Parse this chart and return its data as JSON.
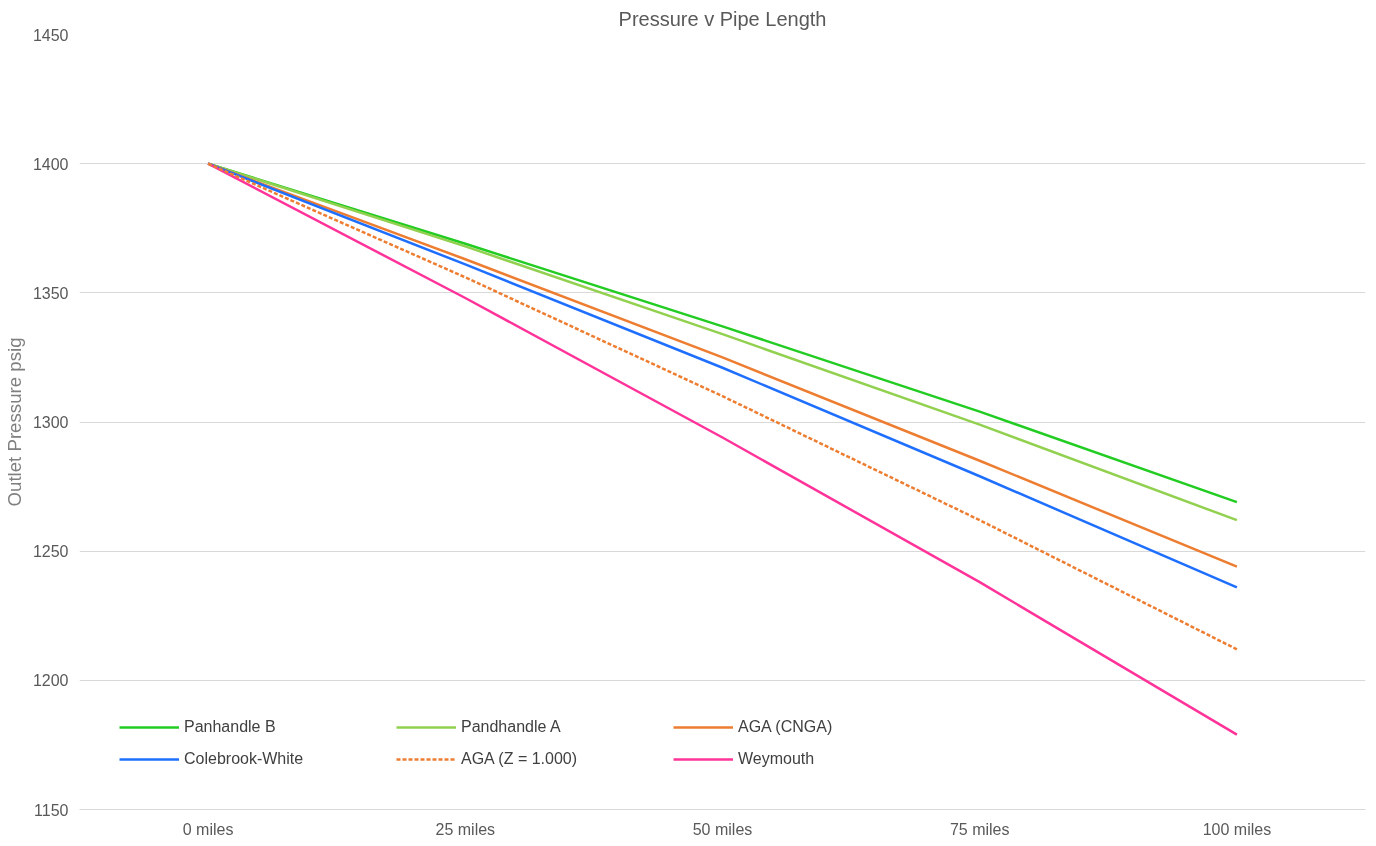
{
  "chart_data": {
    "type": "line",
    "title": "Pressure v Pipe Length",
    "ylabel": "Outlet Pressure psig",
    "categories": [
      "0 miles",
      "25 miles",
      "50 miles",
      "75 miles",
      "100 miles"
    ],
    "series": [
      {
        "name": "Panhandle B",
        "color": "#22cc22",
        "values": [
          1400,
          1369,
          1337,
          1304,
          1269
        ]
      },
      {
        "name": "Pandhandle A",
        "color": "#92d050",
        "values": [
          1400,
          1368,
          1334,
          1299,
          1262
        ]
      },
      {
        "name": "AGA (CNGA)",
        "color": "#ed7d31",
        "values": [
          1400,
          1363,
          1325,
          1285,
          1244
        ]
      },
      {
        "name": "Colebrook-White",
        "color": "#1f6fff",
        "values": [
          1400,
          1361,
          1321,
          1279,
          1236
        ]
      },
      {
        "name": "AGA (Z = 1.000)",
        "color": "#ed7d31",
        "line_style": "dashed",
        "values": [
          1400,
          1356,
          1310,
          1262,
          1212
        ]
      },
      {
        "name": "Weymouth",
        "color": "#ff3399",
        "values": [
          1400,
          1348,
          1294,
          1238,
          1179
        ]
      }
    ],
    "ylim": [
      1150,
      1450
    ],
    "yticks": [
      1150,
      1200,
      1250,
      1300,
      1350,
      1400,
      1450
    ],
    "grid": "y",
    "legend": "bottom left",
    "marker": "none",
    "line_style": "solid"
  }
}
